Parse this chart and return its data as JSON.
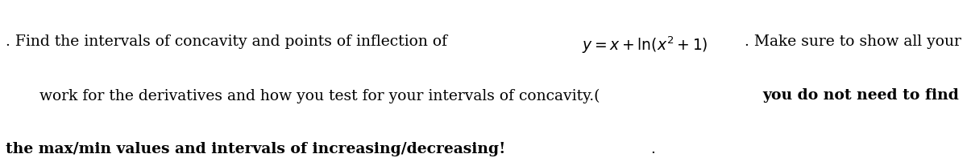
{
  "background_color": "#ffffff",
  "figsize": [
    12.0,
    1.97
  ],
  "dpi": 100,
  "fontsize": 13.5,
  "fontfamily": "DejaVu Serif",
  "line1_normal": ". Find the intervals of concavity and points of inflection of ",
  "line1_math": "$y = x + \\ln(x^2 + 1)$",
  "line1_normal2": ". Make sure to show all your",
  "line2_normal": "work for the derivatives and how you test for your intervals of concavity.(",
  "line2_bold": "you do not need to find",
  "line3_bold": "the max/min values and intervals of increasing/decreasing!",
  "line3_normal": ".",
  "text_color": "#000000"
}
